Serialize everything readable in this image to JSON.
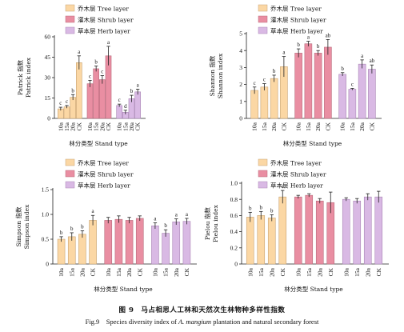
{
  "figure": {
    "caption_cn": "图 9　马占相思人工林和天然次生林物种多样性指数",
    "caption_en_prefix": "Fig.9　Species diversity index of ",
    "caption_en_species": "A. mangium",
    "caption_en_suffix": " plantation and natural secondary forest"
  },
  "colors": {
    "tree": "#fbd7a4",
    "tree_stroke": "#c8a372",
    "shrub": "#e98ea2",
    "shrub_stroke": "#b96b7c",
    "herb": "#d9b9e4",
    "herb_stroke": "#a986b4",
    "error": "#222222"
  },
  "chart_data": [
    {
      "type": "bar",
      "ylabel_cn": "Patrick 指数",
      "ylabel_en": "Patrick index",
      "xlabel": "林分类型 Stand type",
      "ylim": [
        0,
        60
      ],
      "yticks": [
        "0",
        "15",
        "30",
        "45",
        "60"
      ],
      "categories": [
        "10a",
        "15a",
        "20a",
        "CK"
      ],
      "legend": [
        "乔木层 Tree layer",
        "灌木层 Shrub layer",
        "草本层 Herb layer"
      ],
      "series": [
        {
          "name": "乔木层 Tree layer",
          "values": [
            7,
            8.5,
            15.5,
            41
          ],
          "errors": [
            1.2,
            1,
            2,
            5
          ],
          "letters": [
            "c",
            "c",
            "b",
            "a"
          ]
        },
        {
          "name": "灌木层 Shrub layer",
          "values": [
            25.5,
            36.5,
            28.5,
            46
          ],
          "errors": [
            2.5,
            2,
            3,
            7
          ],
          "letters": [
            "c",
            "b",
            "c",
            "a"
          ]
        },
        {
          "name": "草本层 Herb layer",
          "values": [
            9.5,
            4.5,
            14.5,
            19.5
          ],
          "errors": [
            1,
            1.5,
            2.5,
            2
          ],
          "letters": [
            "c",
            "d",
            "b",
            "a"
          ]
        }
      ]
    },
    {
      "type": "bar",
      "ylabel_cn": "Shannon 指数",
      "ylabel_en": "Shannon index",
      "xlabel": "林分类型 Stand type",
      "ylim": [
        0,
        5
      ],
      "yticks": [
        "0",
        "1",
        "2",
        "3",
        "4",
        "5"
      ],
      "categories": [
        "10a",
        "15a",
        "20a",
        "CK"
      ],
      "legend": [
        "乔木层 Tree layer",
        "灌木层 Shrub layer",
        "草本层 Herb layer"
      ],
      "series": [
        {
          "name": "乔木层 Tree layer",
          "values": [
            1.65,
            1.85,
            2.35,
            3.05
          ],
          "errors": [
            0.2,
            0.2,
            0.2,
            0.6
          ],
          "letters": [
            "c",
            "c",
            "b",
            "a"
          ]
        },
        {
          "name": "灌木层 Shrub layer",
          "values": [
            3.85,
            4.4,
            3.85,
            4.2
          ],
          "errors": [
            0.25,
            0.15,
            0.15,
            0.45
          ],
          "letters": [
            "b",
            "a",
            "b",
            "ab"
          ]
        },
        {
          "name": "草本层 Herb layer",
          "values": [
            2.6,
            1.72,
            3.2,
            2.9
          ],
          "errors": [
            0.1,
            0.05,
            0.25,
            0.25
          ],
          "letters": [
            "b",
            "c",
            "a",
            "ab"
          ]
        }
      ]
    },
    {
      "type": "bar",
      "ylabel_cn": "Simpson 指数",
      "ylabel_en": "Simpson index",
      "xlabel": "林分类型 Stand type",
      "ylim": [
        0,
        1.5
      ],
      "yticks": [
        "0",
        "0.5",
        "1.0",
        "1.5"
      ],
      "categories": [
        "10a",
        "15a",
        "20a",
        "CK"
      ],
      "legend": [
        "乔木层 Tree layer",
        "灌木层 Shrub layer",
        "草本层 Herb layer"
      ],
      "series": [
        {
          "name": "乔木层 Tree layer",
          "values": [
            0.5,
            0.55,
            0.6,
            0.88
          ],
          "errors": [
            0.05,
            0.08,
            0.07,
            0.1
          ],
          "letters": [
            "b",
            "b",
            "b",
            "a"
          ]
        },
        {
          "name": "灌木层 Shrub layer",
          "values": [
            0.88,
            0.9,
            0.88,
            0.92
          ],
          "errors": [
            0.06,
            0.07,
            0.06,
            0.05
          ],
          "letters": [
            "",
            "",
            "",
            ""
          ]
        },
        {
          "name": "草本层 Herb layer",
          "values": [
            0.77,
            0.62,
            0.85,
            0.86
          ],
          "errors": [
            0.06,
            0.07,
            0.06,
            0.06
          ],
          "letters": [
            "a",
            "b",
            "a",
            "a"
          ]
        }
      ]
    },
    {
      "type": "bar",
      "ylabel_cn": "Pielou 指数",
      "ylabel_en": "Pielou index",
      "xlabel": "林分类型 Stand type",
      "ylim": [
        0,
        1.0
      ],
      "yticks": [
        "0",
        "0.2",
        "0.4",
        "0.6",
        "0.8",
        "1.0"
      ],
      "categories": [
        "10a",
        "15a",
        "20a",
        "CK"
      ],
      "legend": [
        "乔木层 Tree layer",
        "灌木层 Shrub layer",
        "草本层 Herb layer"
      ],
      "series": [
        {
          "name": "乔木层 Tree layer",
          "values": [
            0.58,
            0.6,
            0.57,
            0.83
          ],
          "errors": [
            0.06,
            0.05,
            0.04,
            0.08
          ],
          "letters": [
            "b",
            "b",
            "b",
            "a"
          ]
        },
        {
          "name": "灌木层 Shrub layer",
          "values": [
            0.83,
            0.85,
            0.78,
            0.76
          ],
          "errors": [
            0.02,
            0.02,
            0.03,
            0.13
          ],
          "letters": [
            "",
            "",
            "",
            ""
          ]
        },
        {
          "name": "草本层 Herb layer",
          "values": [
            0.8,
            0.78,
            0.83,
            0.83
          ],
          "errors": [
            0.02,
            0.03,
            0.04,
            0.07
          ],
          "letters": [
            "",
            "",
            "",
            ""
          ]
        }
      ]
    }
  ]
}
